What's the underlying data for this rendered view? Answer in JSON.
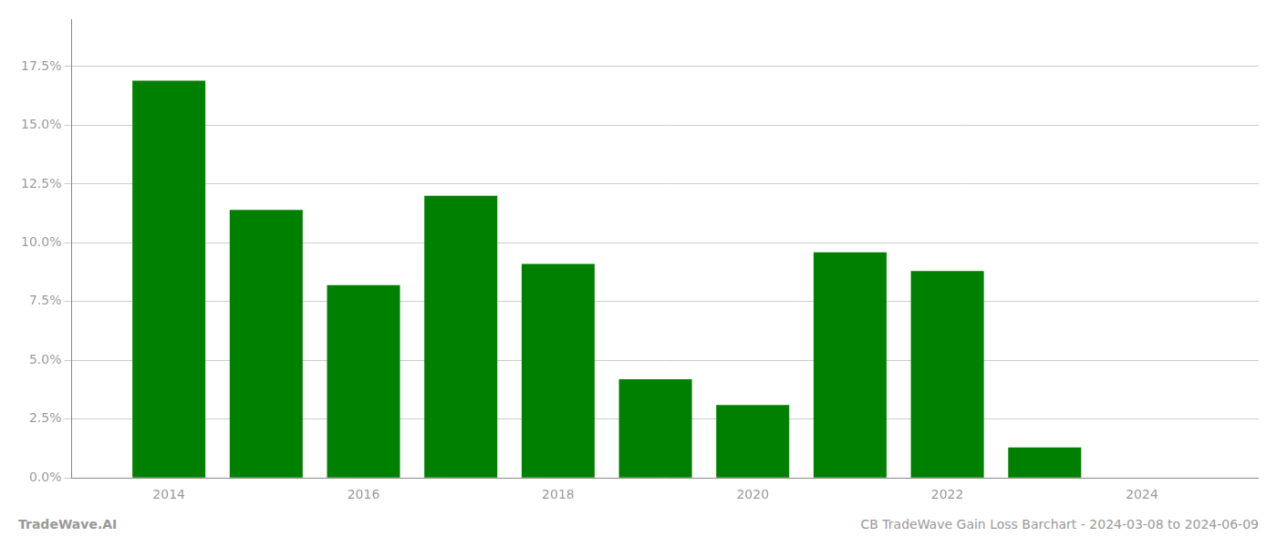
{
  "chart_data": {
    "type": "bar",
    "x": [
      2014,
      2015,
      2016,
      2017,
      2018,
      2019,
      2020,
      2021,
      2022,
      2023
    ],
    "values": [
      0.169,
      0.114,
      0.082,
      0.12,
      0.091,
      0.042,
      0.031,
      0.096,
      0.088,
      0.013
    ],
    "color": "#008000",
    "xlim": [
      2013.0,
      2025.2
    ],
    "xticks": [
      2014,
      2016,
      2018,
      2020,
      2022,
      2024
    ],
    "ylim": [
      0,
      0.195
    ],
    "yticks": [
      {
        "value": 0.0,
        "label": "0.0%"
      },
      {
        "value": 0.025,
        "label": "2.5%"
      },
      {
        "value": 0.05,
        "label": "5.0%"
      },
      {
        "value": 0.075,
        "label": "7.5%"
      },
      {
        "value": 0.1,
        "label": "10.0%"
      },
      {
        "value": 0.125,
        "label": "12.5%"
      },
      {
        "value": 0.15,
        "label": "15.0%"
      },
      {
        "value": 0.175,
        "label": "17.5%"
      }
    ],
    "grid": "y",
    "annotations": [
      "TradeWave.AI",
      "CB TradeWave Gain Loss Barchart - 2024-03-08 to 2024-06-09"
    ]
  }
}
